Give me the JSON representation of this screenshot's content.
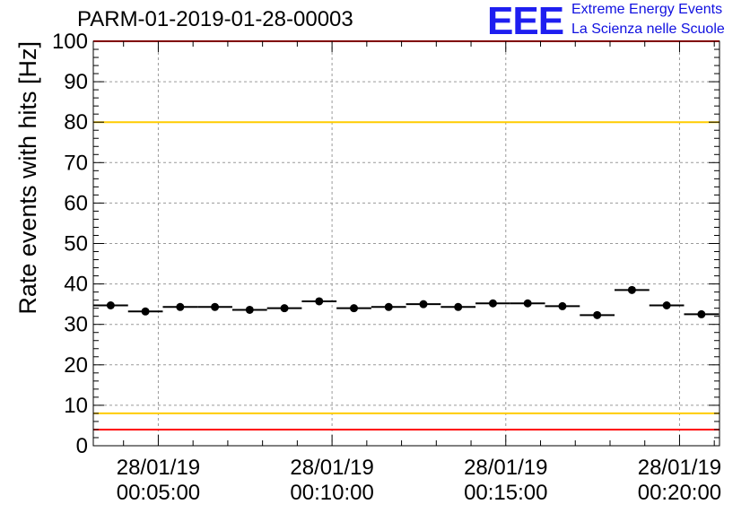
{
  "chart_data": {
    "type": "scatter",
    "title": "PARM-01-2019-01-28-00003",
    "ylabel": "Rate events with hits [Hz]",
    "xlabel": "",
    "ylim": [
      0,
      100
    ],
    "yticks": [
      0,
      10,
      20,
      30,
      40,
      50,
      60,
      70,
      80,
      90,
      100
    ],
    "x_unit": "minutes",
    "xlim": [
      3.13,
      21.15
    ],
    "xticks": [
      {
        "x": 5,
        "date": "28/01/19",
        "time": "00:05:00"
      },
      {
        "x": 10,
        "date": "28/01/19",
        "time": "00:10:00"
      },
      {
        "x": 15,
        "date": "28/01/19",
        "time": "00:15:00"
      },
      {
        "x": 20,
        "date": "28/01/19",
        "time": "00:20:00"
      }
    ],
    "grid": true,
    "bin_width": 1,
    "series": [
      {
        "x": [
          3.63,
          4.63,
          5.63,
          6.63,
          7.63,
          8.63,
          9.63,
          10.63,
          11.63,
          12.63,
          13.63,
          14.63,
          15.63,
          16.63,
          17.63,
          18.63,
          19.63,
          20.63
        ],
        "values": [
          34.7,
          33.2,
          34.3,
          34.3,
          33.6,
          34.0,
          35.7,
          34.0,
          34.3,
          35.0,
          34.3,
          35.2,
          35.2,
          34.5,
          32.3,
          38.5,
          34.7,
          32.5
        ]
      }
    ],
    "reference_lines": [
      {
        "y": 100,
        "color": "#ff0000"
      },
      {
        "y": 80,
        "color": "#ffcc00"
      },
      {
        "y": 8,
        "color": "#ffcc00"
      },
      {
        "y": 4,
        "color": "#ff0000"
      }
    ]
  },
  "logo": {
    "mark": "EEE",
    "line1": "Extreme Energy Events",
    "line2": "La Scienza nelle Scuole"
  }
}
